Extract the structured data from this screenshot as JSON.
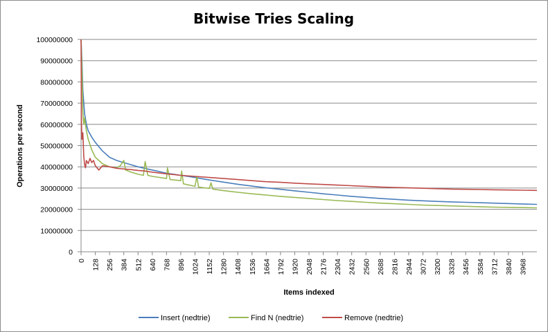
{
  "chart_data": {
    "type": "line",
    "title": "Bitwise Tries Scaling",
    "xlabel": "Items indexed",
    "ylabel": "Operations per second",
    "xlim": [
      0,
      4096
    ],
    "ylim": [
      0,
      100000000
    ],
    "x_ticks": [
      0,
      128,
      256,
      384,
      512,
      640,
      768,
      896,
      1024,
      1152,
      1280,
      1408,
      1536,
      1664,
      1792,
      1920,
      2048,
      2176,
      2304,
      2432,
      2560,
      2688,
      2816,
      2944,
      3072,
      3200,
      3328,
      3456,
      3584,
      3712,
      3840,
      3968
    ],
    "y_ticks": [
      0,
      10000000,
      20000000,
      30000000,
      40000000,
      50000000,
      60000000,
      70000000,
      80000000,
      90000000,
      100000000
    ],
    "grid": "horizontal",
    "legend_position": "bottom",
    "series": [
      {
        "name": "Insert (nedtrie)",
        "color": "#4a7ebb",
        "points": [
          [
            0,
            100000000
          ],
          [
            8,
            90000000
          ],
          [
            16,
            76000000
          ],
          [
            32,
            65000000
          ],
          [
            48,
            60000000
          ],
          [
            64,
            57000000
          ],
          [
            96,
            54000000
          ],
          [
            128,
            51500000
          ],
          [
            192,
            47500000
          ],
          [
            256,
            44500000
          ],
          [
            320,
            43000000
          ],
          [
            384,
            42000000
          ],
          [
            448,
            41000000
          ],
          [
            512,
            40000000
          ],
          [
            640,
            38500000
          ],
          [
            768,
            37000000
          ],
          [
            896,
            36000000
          ],
          [
            1024,
            35000000
          ],
          [
            1152,
            33800000
          ],
          [
            1280,
            32800000
          ],
          [
            1408,
            31800000
          ],
          [
            1536,
            30900000
          ],
          [
            1664,
            30100000
          ],
          [
            1792,
            29400000
          ],
          [
            1920,
            28700000
          ],
          [
            2048,
            28000000
          ],
          [
            2176,
            27300000
          ],
          [
            2304,
            26700000
          ],
          [
            2432,
            26100000
          ],
          [
            2560,
            25600000
          ],
          [
            2688,
            25100000
          ],
          [
            2816,
            24700000
          ],
          [
            2944,
            24300000
          ],
          [
            3072,
            24000000
          ],
          [
            3200,
            23700000
          ],
          [
            3328,
            23500000
          ],
          [
            3456,
            23300000
          ],
          [
            3584,
            23100000
          ],
          [
            3712,
            22900000
          ],
          [
            3840,
            22700000
          ],
          [
            3968,
            22500000
          ],
          [
            4096,
            22300000
          ]
        ]
      },
      {
        "name": "Find N (nedtrie)",
        "color": "#98b954",
        "points": [
          [
            0,
            100000000
          ],
          [
            8,
            85000000
          ],
          [
            16,
            66000000
          ],
          [
            24,
            60000000
          ],
          [
            32,
            63000000
          ],
          [
            48,
            57000000
          ],
          [
            64,
            53000000
          ],
          [
            96,
            48000000
          ],
          [
            128,
            44500000
          ],
          [
            192,
            41500000
          ],
          [
            256,
            40000000
          ],
          [
            320,
            39500000
          ],
          [
            352,
            40500000
          ],
          [
            384,
            43000000
          ],
          [
            400,
            38500000
          ],
          [
            448,
            37500000
          ],
          [
            512,
            36500000
          ],
          [
            560,
            36000000
          ],
          [
            576,
            42500000
          ],
          [
            600,
            36000000
          ],
          [
            640,
            35500000
          ],
          [
            768,
            34500000
          ],
          [
            776,
            39500000
          ],
          [
            800,
            34000000
          ],
          [
            896,
            33500000
          ],
          [
            904,
            38000000
          ],
          [
            920,
            32000000
          ],
          [
            1024,
            30800000
          ],
          [
            1040,
            35500000
          ],
          [
            1056,
            30500000
          ],
          [
            1152,
            29800000
          ],
          [
            1168,
            32500000
          ],
          [
            1184,
            29500000
          ],
          [
            1280,
            28800000
          ],
          [
            1408,
            28000000
          ],
          [
            1536,
            27300000
          ],
          [
            1664,
            26700000
          ],
          [
            1792,
            26100000
          ],
          [
            1920,
            25600000
          ],
          [
            2048,
            25100000
          ],
          [
            2176,
            24600000
          ],
          [
            2304,
            24100000
          ],
          [
            2432,
            23700000
          ],
          [
            2560,
            23300000
          ],
          [
            2688,
            22900000
          ],
          [
            2816,
            22600000
          ],
          [
            2944,
            22300000
          ],
          [
            3072,
            22000000
          ],
          [
            3200,
            21800000
          ],
          [
            3328,
            21600000
          ],
          [
            3456,
            21400000
          ],
          [
            3584,
            21200000
          ],
          [
            3712,
            21000000
          ],
          [
            3840,
            20900000
          ],
          [
            3968,
            20800000
          ],
          [
            4096,
            20700000
          ]
        ]
      },
      {
        "name": "Remove (nedtrie)",
        "color": "#be4b48",
        "points": [
          [
            0,
            100000000
          ],
          [
            4,
            60000000
          ],
          [
            8,
            53000000
          ],
          [
            16,
            56000000
          ],
          [
            24,
            45000000
          ],
          [
            32,
            41000000
          ],
          [
            40,
            39500000
          ],
          [
            48,
            43000000
          ],
          [
            64,
            41500000
          ],
          [
            80,
            44000000
          ],
          [
            96,
            42000000
          ],
          [
            112,
            43000000
          ],
          [
            128,
            40500000
          ],
          [
            160,
            38500000
          ],
          [
            192,
            40500000
          ],
          [
            256,
            40000000
          ],
          [
            320,
            39300000
          ],
          [
            384,
            39000000
          ],
          [
            448,
            38700000
          ],
          [
            512,
            38300000
          ],
          [
            576,
            38000000
          ],
          [
            640,
            37500000
          ],
          [
            768,
            36700000
          ],
          [
            896,
            36000000
          ],
          [
            1024,
            35500000
          ],
          [
            1152,
            35000000
          ],
          [
            1280,
            34500000
          ],
          [
            1408,
            34000000
          ],
          [
            1536,
            33500000
          ],
          [
            1664,
            33000000
          ],
          [
            1792,
            32700000
          ],
          [
            1920,
            32300000
          ],
          [
            2048,
            32000000
          ],
          [
            2176,
            31700000
          ],
          [
            2304,
            31400000
          ],
          [
            2432,
            31100000
          ],
          [
            2560,
            30800000
          ],
          [
            2688,
            30500000
          ],
          [
            2816,
            30300000
          ],
          [
            2944,
            30100000
          ],
          [
            3072,
            29900000
          ],
          [
            3200,
            29700000
          ],
          [
            3328,
            29500000
          ],
          [
            3456,
            29400000
          ],
          [
            3584,
            29300000
          ],
          [
            3712,
            29200000
          ],
          [
            3840,
            29100000
          ],
          [
            3968,
            29000000
          ],
          [
            4096,
            28900000
          ]
        ]
      }
    ]
  }
}
